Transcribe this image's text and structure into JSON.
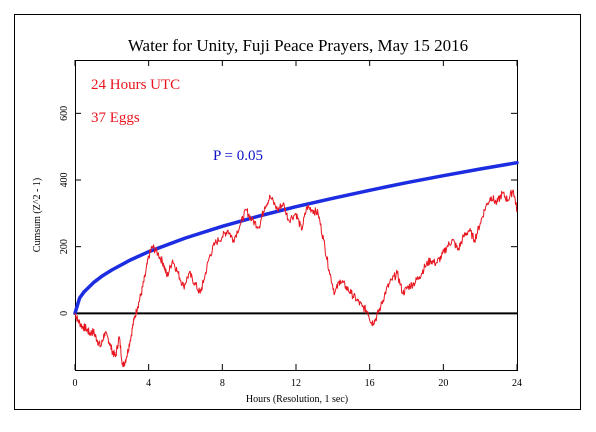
{
  "chart_data": {
    "type": "line",
    "title": "Water for Unity, Fuji Peace Prayers, May 15 2016",
    "xlabel": "Hours (Resolution, 1 sec)",
    "ylabel": "Cumsum (Z^2 - 1)",
    "xlim": [
      0,
      24
    ],
    "ylim": [
      -170,
      760
    ],
    "x_ticks": [
      0,
      4,
      8,
      12,
      16,
      20,
      24
    ],
    "x_tick_labels": [
      "0",
      "4",
      "8",
      "12",
      "16",
      "20",
      "24"
    ],
    "y_ticks": [
      0,
      200,
      400,
      600
    ],
    "y_tick_labels": [
      "0",
      "200",
      "400",
      "600"
    ],
    "grid": false,
    "annotations": [
      {
        "text": "24 Hours UTC",
        "color": "#e8141e"
      },
      {
        "text": "37 Eggs",
        "color": "#e8141e"
      },
      {
        "text": "P = 0.05",
        "color": "#1010c8"
      }
    ],
    "reference_line": {
      "y": 0,
      "color": "#000000"
    },
    "series": [
      {
        "name": "P = 0.05",
        "color": "#1c2ce0",
        "x": [
          0,
          0.25,
          0.5,
          1,
          1.5,
          2,
          3,
          4,
          6,
          8,
          10,
          12,
          14,
          16,
          18,
          20,
          22,
          24
        ],
        "values": [
          0,
          46,
          65,
          92,
          113,
          130,
          160,
          185,
          226,
          261,
          292,
          320,
          345,
          369,
          392,
          413,
          433,
          452
        ]
      },
      {
        "color": "#e8141e",
        "x": [
          0,
          0.15,
          0.4,
          0.6,
          0.8,
          1.0,
          1.2,
          1.4,
          1.6,
          1.8,
          2.0,
          2.2,
          2.4,
          2.6,
          2.8,
          3.0,
          3.2,
          3.4,
          3.6,
          3.8,
          4.0,
          4.2,
          4.5,
          4.8,
          5.0,
          5.3,
          5.6,
          5.9,
          6.2,
          6.5,
          6.8,
          7.0,
          7.3,
          7.6,
          8.0,
          8.3,
          8.6,
          9.0,
          9.3,
          9.6,
          10.0,
          10.3,
          10.6,
          11.0,
          11.3,
          11.6,
          12.0,
          12.3,
          12.6,
          12.9,
          13.2,
          13.5,
          13.8,
          14.1,
          14.4,
          14.7,
          15.0,
          15.3,
          15.6,
          15.9,
          16.1,
          16.3,
          16.6,
          16.9,
          17.2,
          17.5,
          17.8,
          18.1,
          18.4,
          18.7,
          19.0,
          19.3,
          19.6,
          19.9,
          20.2,
          20.5,
          20.8,
          21.1,
          21.4,
          21.7,
          22.0,
          22.3,
          22.6,
          22.9,
          23.2,
          23.5,
          23.8,
          24.0
        ],
        "values": [
          0,
          -20,
          -40,
          -45,
          -60,
          -55,
          -80,
          -100,
          -60,
          -75,
          -110,
          -130,
          -70,
          -160,
          -130,
          -80,
          -20,
          20,
          60,
          110,
          170,
          200,
          180,
          150,
          110,
          160,
          120,
          80,
          120,
          90,
          60,
          100,
          170,
          210,
          230,
          250,
          220,
          270,
          310,
          280,
          260,
          320,
          350,
          310,
          330,
          280,
          300,
          250,
          320,
          310,
          300,
          220,
          130,
          60,
          100,
          80,
          60,
          40,
          20,
          5,
          -30,
          -20,
          20,
          70,
          100,
          120,
          60,
          80,
          90,
          110,
          140,
          160,
          150,
          170,
          200,
          220,
          190,
          230,
          250,
          220,
          270,
          320,
          350,
          330,
          360,
          340,
          370,
          310
        ]
      }
    ]
  }
}
